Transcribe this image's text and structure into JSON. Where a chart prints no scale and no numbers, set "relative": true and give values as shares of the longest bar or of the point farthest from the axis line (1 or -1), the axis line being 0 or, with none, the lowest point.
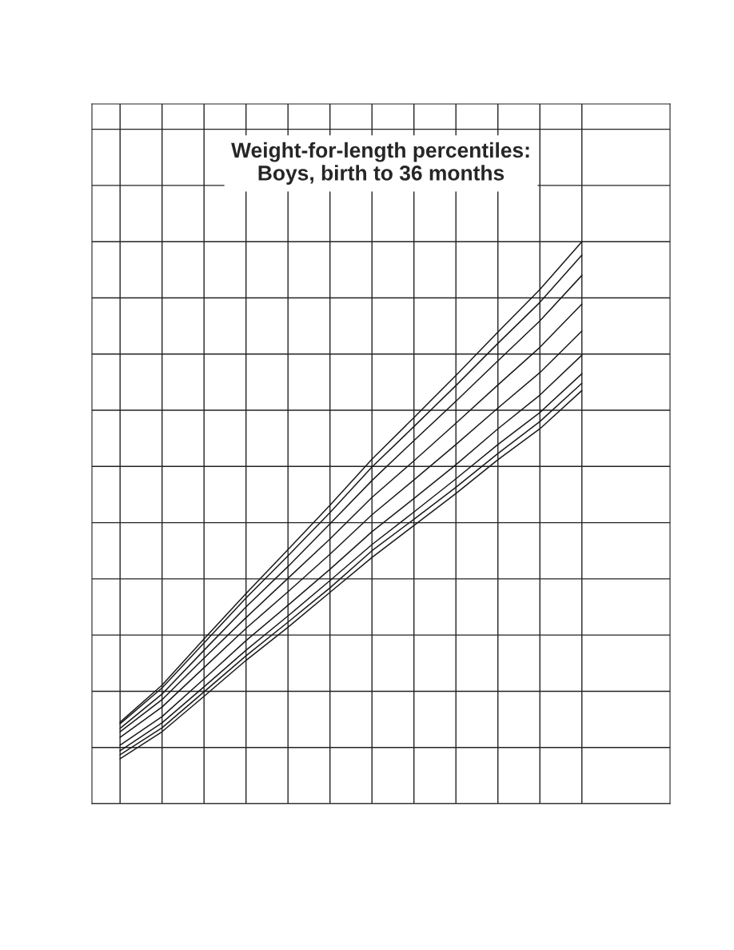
{
  "chart_data": {
    "type": "line",
    "title": "Weight-for-length percentiles:\nBoys, birth to 36 months",
    "relative": true,
    "grid": true,
    "legend": false,
    "marker": "none",
    "line_style": "solid",
    "categories": [
      null,
      null,
      null,
      null,
      null,
      null,
      null,
      null,
      null,
      null,
      null,
      null
    ],
    "series": [
      {
        "color": "#1a1a1a",
        "values": [
          0.145,
          0.211,
          0.293,
          0.374,
          0.452,
          0.531,
          0.613,
          0.687,
          0.762,
          0.839,
          0.915,
          1.0
        ]
      },
      {
        "color": "#1a1a1a",
        "values": [
          0.142,
          0.206,
          0.286,
          0.366,
          0.441,
          0.518,
          0.599,
          0.671,
          0.744,
          0.819,
          0.892,
          0.976
        ]
      },
      {
        "color": "#1a1a1a",
        "values": [
          0.134,
          0.195,
          0.273,
          0.35,
          0.422,
          0.498,
          0.575,
          0.646,
          0.716,
          0.788,
          0.859,
          0.94
        ]
      },
      {
        "color": "#1a1a1a",
        "values": [
          0.128,
          0.185,
          0.259,
          0.331,
          0.401,
          0.471,
          0.545,
          0.61,
          0.677,
          0.745,
          0.812,
          0.889
        ]
      },
      {
        "color": "#1a1a1a",
        "values": [
          0.118,
          0.172,
          0.242,
          0.312,
          0.377,
          0.444,
          0.514,
          0.576,
          0.639,
          0.704,
          0.767,
          0.841
        ]
      },
      {
        "color": "#1a1a1a",
        "values": [
          0.104,
          0.155,
          0.222,
          0.29,
          0.353,
          0.417,
          0.484,
          0.543,
          0.603,
          0.667,
          0.727,
          0.798
        ]
      },
      {
        "color": "#1a1a1a",
        "values": [
          0.094,
          0.144,
          0.208,
          0.273,
          0.334,
          0.397,
          0.461,
          0.519,
          0.578,
          0.639,
          0.696,
          0.765
        ]
      },
      {
        "color": "#1a1a1a",
        "values": [
          0.087,
          0.135,
          0.199,
          0.263,
          0.323,
          0.384,
          0.45,
          0.506,
          0.563,
          0.623,
          0.68,
          0.748
        ]
      },
      {
        "color": "#1a1a1a",
        "values": [
          0.08,
          0.128,
          0.191,
          0.255,
          0.314,
          0.376,
          0.438,
          0.495,
          0.552,
          0.612,
          0.667,
          0.735
        ]
      }
    ]
  }
}
